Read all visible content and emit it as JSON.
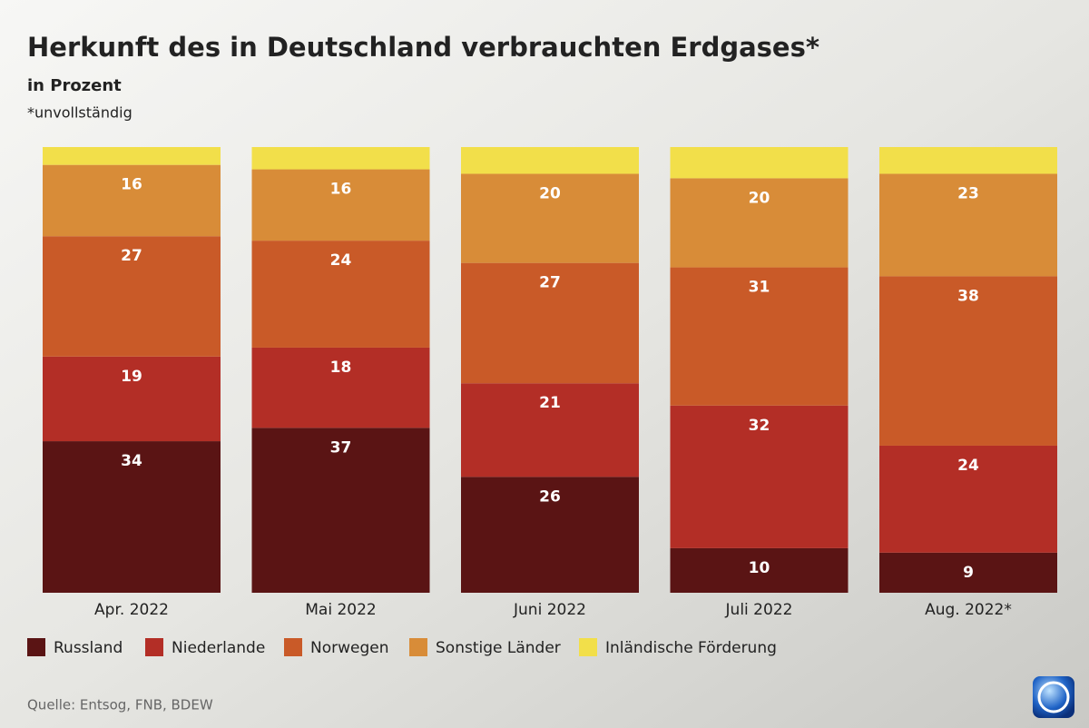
{
  "chart_data": {
    "type": "stacked-bar",
    "title": "Herkunft des in Deutschland verbrauchten Erdgases*",
    "subtitle": "in Prozent",
    "note": "*unvollständig",
    "source": "Quelle: Entsog, FNB, BDEW",
    "categories": [
      "Apr. 2022",
      "Mai 2022",
      "Juni 2022",
      "Juli 2022",
      "Aug. 2022*"
    ],
    "series": [
      {
        "name": "Russland",
        "color": "#5a1414",
        "values": [
          34,
          37,
          26,
          10,
          9
        ]
      },
      {
        "name": "Niederlande",
        "color": "#b32e26",
        "values": [
          19,
          18,
          21,
          32,
          24
        ]
      },
      {
        "name": "Norwegen",
        "color": "#c95a28",
        "values": [
          27,
          24,
          27,
          31,
          38
        ]
      },
      {
        "name": "Sonstige Länder",
        "color": "#d88c38",
        "values": [
          16,
          16,
          20,
          20,
          23
        ]
      },
      {
        "name": "Inländische Förderung",
        "color": "#f2df4a",
        "values": [
          4,
          5,
          6,
          7,
          6
        ],
        "data_labels": false
      }
    ]
  }
}
